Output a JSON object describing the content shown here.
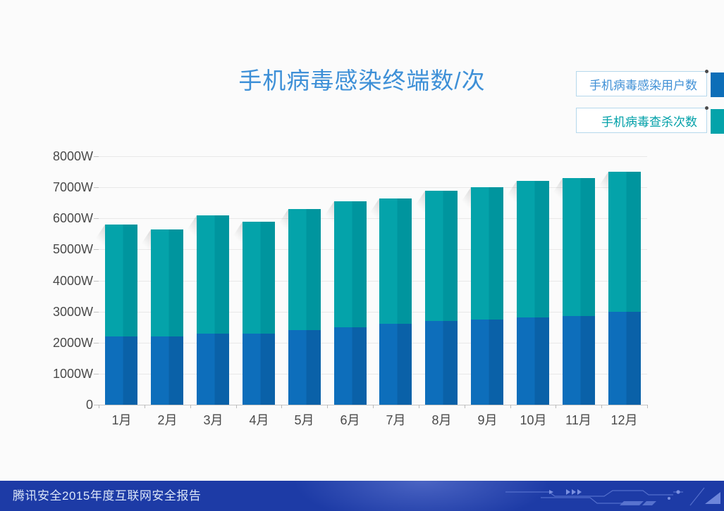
{
  "title": "手机病毒感染终端数/次",
  "legend": [
    {
      "label": "手机病毒感染用户数",
      "color": "#0d6eb8",
      "text_color": "#4191d6"
    },
    {
      "label": "手机病毒查杀次数",
      "color": "#04a3aa",
      "text_color": "#00a0a8"
    }
  ],
  "footer": {
    "text": "腾讯安全2015年度互联网安全报告",
    "background": "#1d3ba6",
    "text_color": "#dbe6f8"
  },
  "chart_data": {
    "type": "bar",
    "subtype": "overlay",
    "title": "手机病毒感染终端数/次",
    "categories": [
      "1月",
      "2月",
      "3月",
      "4月",
      "5月",
      "6月",
      "7月",
      "8月",
      "9月",
      "10月",
      "11月",
      "12月"
    ],
    "series": [
      {
        "name": "手机病毒查杀次数",
        "color": "#04a3aa",
        "color_dark": "#00959e",
        "values": [
          5800,
          5650,
          6100,
          5900,
          6300,
          6550,
          6650,
          6900,
          7000,
          7200,
          7300,
          7500
        ]
      },
      {
        "name": "手机病毒感染用户数",
        "color": "#0d6ebb",
        "color_dark": "#0a61a8",
        "values": [
          2200,
          2200,
          2300,
          2300,
          2400,
          2500,
          2600,
          2700,
          2750,
          2800,
          2850,
          3000
        ]
      }
    ],
    "unit": "W",
    "y_ticks": [
      "8000W",
      "7000W",
      "6000W",
      "5000W",
      "4000W",
      "3000W",
      "2000W",
      "1000W",
      "0"
    ],
    "ylim": [
      0,
      8000
    ],
    "grid": true,
    "legend_position": "top-right"
  }
}
